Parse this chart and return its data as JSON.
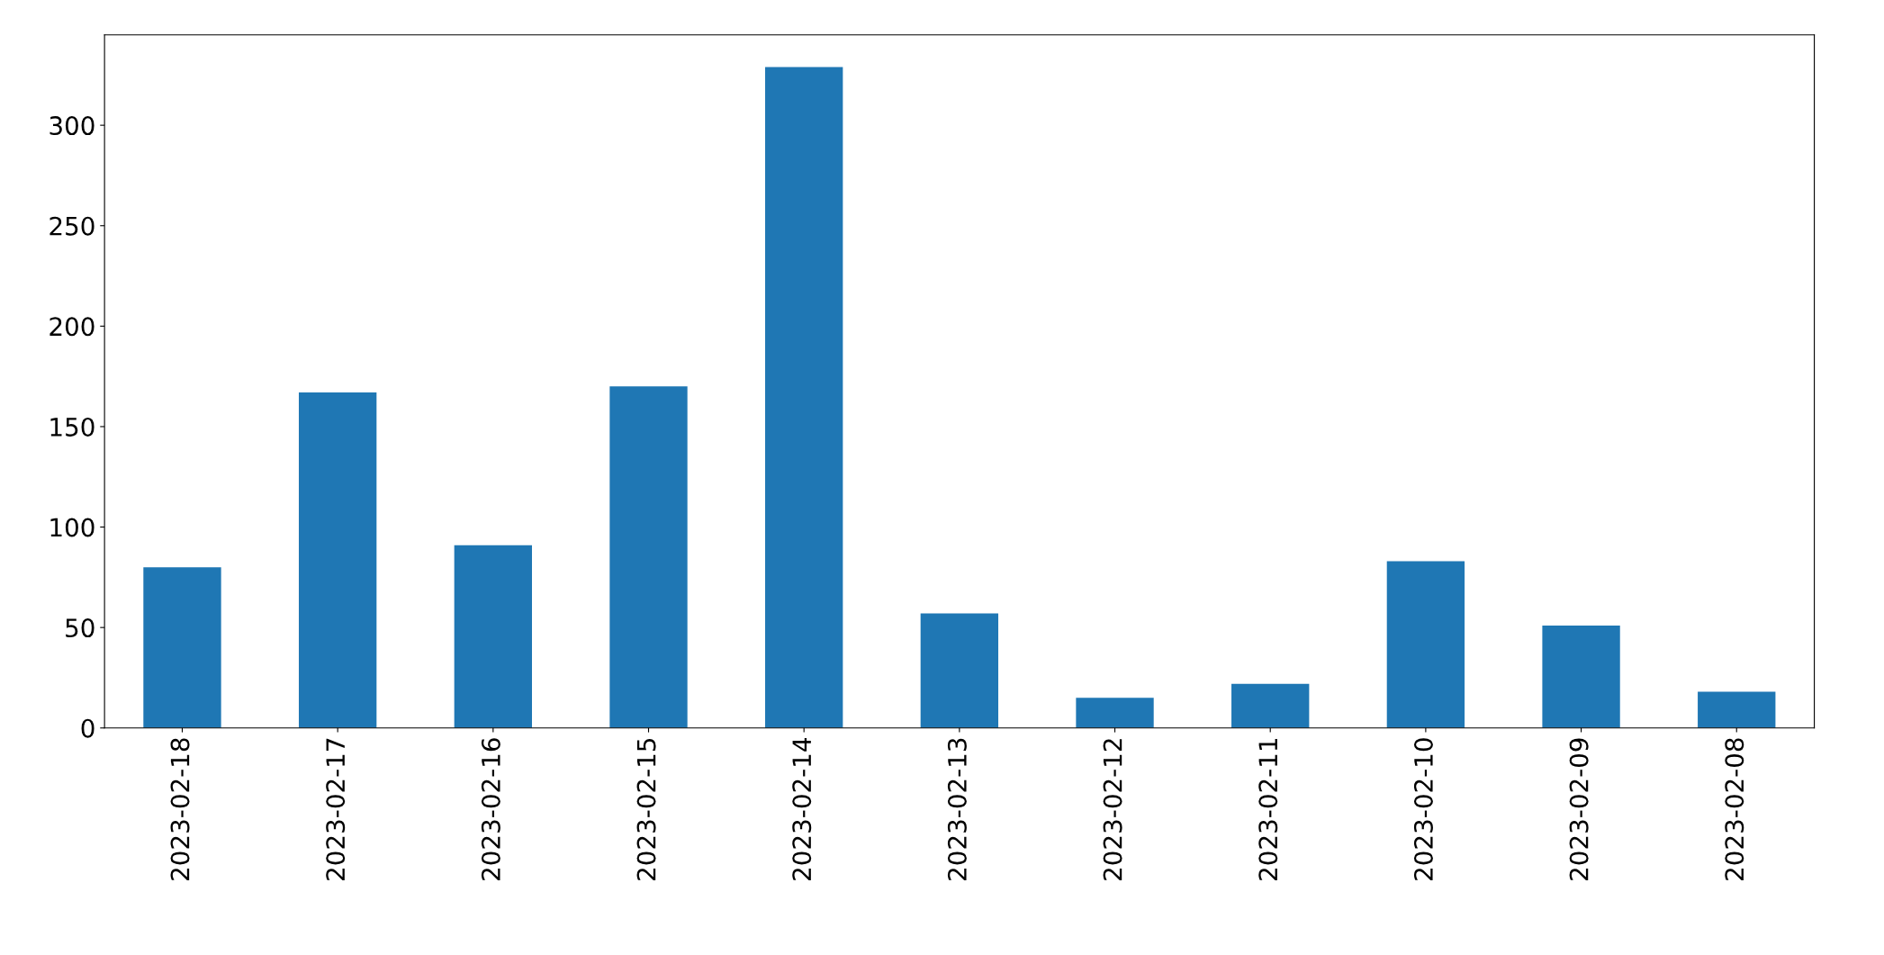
{
  "chart_data": {
    "type": "bar",
    "categories": [
      "2023-02-18",
      "2023-02-17",
      "2023-02-16",
      "2023-02-15",
      "2023-02-14",
      "2023-02-13",
      "2023-02-12",
      "2023-02-11",
      "2023-02-10",
      "2023-02-09",
      "2023-02-08"
    ],
    "values": [
      80,
      167,
      91,
      170,
      329,
      57,
      15,
      22,
      83,
      51,
      18
    ],
    "color": "#1f77b4",
    "ylim": [
      0,
      345
    ],
    "yticks": [
      0,
      50,
      100,
      150,
      200,
      250,
      300
    ],
    "grid": false,
    "legend": false
  }
}
